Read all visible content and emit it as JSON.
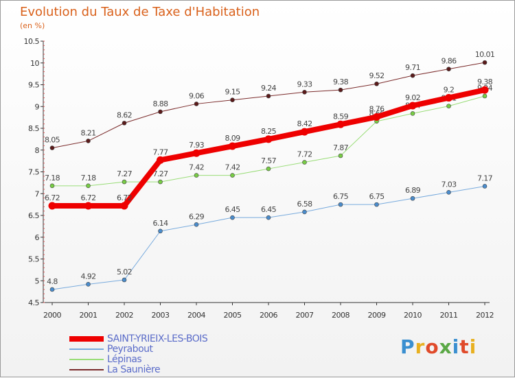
{
  "header": {
    "title": "Evolution du Taux de Taxe d'Habitation",
    "subtitle": "(en %)"
  },
  "logo": {
    "text": "Proxiti",
    "colors": [
      "#3a8fd0",
      "#e8b020",
      "#e04a2a",
      "#5aa845",
      "#3a8fd0",
      "#e04a2a",
      "#e8b020"
    ]
  },
  "chart_data": {
    "type": "line",
    "x": [
      "2000",
      "2001",
      "2002",
      "2003",
      "2004",
      "2005",
      "2006",
      "2007",
      "2008",
      "2009",
      "2010",
      "2011",
      "2012"
    ],
    "ylim": [
      4.5,
      10.5
    ],
    "yticks": [
      "4.5",
      "5",
      "5.5",
      "6",
      "6.5",
      "7",
      "7.5",
      "8",
      "8.5",
      "9",
      "9.5",
      "10",
      "10.5"
    ],
    "grid": false,
    "legend_position": "bottom-left",
    "series": [
      {
        "name": "La Saunière",
        "color": "#7a2a2a",
        "marker": "#5a1a1a",
        "width": 1,
        "values": [
          8.05,
          8.21,
          8.62,
          8.88,
          9.06,
          9.15,
          9.24,
          9.33,
          9.38,
          9.52,
          9.71,
          9.86,
          10.01
        ],
        "labels": [
          "8.05",
          "8.21",
          "8.62",
          "8.88",
          "9.06",
          "9.15",
          "9.24",
          "9.33",
          "9.38",
          "9.52",
          "9.71",
          "9.86",
          "10.01"
        ]
      },
      {
        "name": "Lépinas",
        "color": "#99dd77",
        "marker": "#77cc44",
        "width": 1,
        "values": [
          7.18,
          7.18,
          7.27,
          7.27,
          7.42,
          7.42,
          7.57,
          7.72,
          7.87,
          8.66,
          8.84,
          9.01,
          9.24
        ],
        "labels": [
          "7.18",
          "7.18",
          "7.27",
          "7.27",
          "7.42",
          "7.42",
          "7.57",
          "7.72",
          "7.87",
          "8.66",
          "8.84",
          "9.01",
          "9.24"
        ]
      },
      {
        "name": "Peyrabout",
        "color": "#77aadd",
        "marker": "#4a8ccc",
        "width": 1,
        "values": [
          4.8,
          4.92,
          5.02,
          6.14,
          6.29,
          6.45,
          6.45,
          6.58,
          6.75,
          6.75,
          6.89,
          7.03,
          7.17
        ],
        "labels": [
          "4.8",
          "4.92",
          "5.02",
          "6.14",
          "6.29",
          "6.45",
          "6.45",
          "6.58",
          "6.75",
          "6.75",
          "6.89",
          "7.03",
          "7.17"
        ]
      },
      {
        "name": "SAINT-YRIEIX-LES-BOIS",
        "color": "#ee0000",
        "marker": "#ee0000",
        "width": 8,
        "values": [
          6.72,
          6.72,
          6.72,
          7.77,
          7.93,
          8.09,
          8.25,
          8.42,
          8.59,
          8.76,
          9.02,
          9.2,
          9.38
        ],
        "labels": [
          "6.72",
          "6.72",
          "6.72",
          "7.77",
          "7.93",
          "8.09",
          "8.25",
          "8.42",
          "8.59",
          "8.76",
          "9.02",
          "9.2",
          "9.38"
        ]
      }
    ]
  },
  "legend": [
    {
      "label": "SAINT-YRIEIX-LES-BOIS",
      "color": "#ee0000",
      "thickness": 8
    },
    {
      "label": "Peyrabout",
      "color": "#77aadd",
      "thickness": 2
    },
    {
      "label": "Lépinas",
      "color": "#99dd77",
      "thickness": 2
    },
    {
      "label": "La Saunière",
      "color": "#7a2a2a",
      "thickness": 2
    }
  ]
}
